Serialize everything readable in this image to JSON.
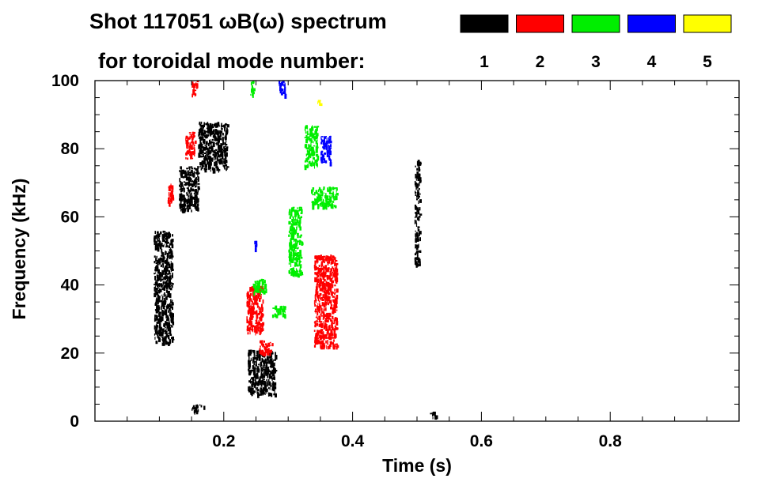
{
  "chart_data": {
    "type": "heatmap",
    "title_line1": "Shot 117051 ωB(ω) spectrum",
    "title_line2": "for toroidal mode number:",
    "xlabel": "Time (s)",
    "ylabel": "Frequency (kHz)",
    "xlim": [
      0,
      1.0
    ],
    "ylim": [
      0,
      100
    ],
    "xticks": [
      0.2,
      0.4,
      0.6,
      0.8
    ],
    "xtick_labels": [
      "0.2",
      "0.4",
      "0.6",
      "0.8"
    ],
    "yticks": [
      0,
      20,
      40,
      60,
      80,
      100
    ],
    "ytick_labels": [
      "0",
      "20",
      "40",
      "60",
      "80",
      "100"
    ],
    "legend_placement": "top, to the right of the title",
    "legend": [
      {
        "label": "1",
        "color": "#000000"
      },
      {
        "label": "2",
        "color": "#ff0000"
      },
      {
        "label": "3",
        "color": "#00ee00"
      },
      {
        "label": "4",
        "color": "#0000ff"
      },
      {
        "label": "5",
        "color": "#ffff00"
      }
    ],
    "series": [
      {
        "mode": 1,
        "color": "#000000",
        "regions": [
          {
            "t": [
              0.091,
              0.12
            ],
            "f": [
              23,
              56
            ]
          },
          {
            "t": [
              0.13,
              0.16
            ],
            "f": [
              62,
              75
            ]
          },
          {
            "t": [
              0.16,
              0.205
            ],
            "f": [
              74,
              88
            ]
          },
          {
            "t": [
              0.237,
              0.28
            ],
            "f": [
              8,
              21
            ]
          },
          {
            "t": [
              0.496,
              0.504
            ],
            "f": [
              46,
              77
            ]
          },
          {
            "t": [
              0.15,
              0.17
            ],
            "f": [
              3,
              5
            ]
          },
          {
            "t": [
              0.52,
              0.53
            ],
            "f": [
              1,
              3
            ]
          }
        ]
      },
      {
        "mode": 2,
        "color": "#ff0000",
        "regions": [
          {
            "t": [
              0.34,
              0.375
            ],
            "f": [
              22,
              49
            ]
          },
          {
            "t": [
              0.235,
              0.26
            ],
            "f": [
              26,
              40
            ]
          },
          {
            "t": [
              0.112,
              0.122
            ],
            "f": [
              64,
              70
            ]
          },
          {
            "t": [
              0.14,
              0.155
            ],
            "f": [
              77,
              85
            ]
          },
          {
            "t": [
              0.255,
              0.275
            ],
            "f": [
              20,
              24
            ]
          },
          {
            "t": [
              0.15,
              0.158
            ],
            "f": [
              96,
              100
            ]
          }
        ]
      },
      {
        "mode": 3,
        "color": "#00ee00",
        "regions": [
          {
            "t": [
              0.3,
              0.32
            ],
            "f": [
              43,
              63
            ]
          },
          {
            "t": [
              0.335,
              0.375
            ],
            "f": [
              63,
              69
            ]
          },
          {
            "t": [
              0.325,
              0.345
            ],
            "f": [
              75,
              87
            ]
          },
          {
            "t": [
              0.245,
              0.265
            ],
            "f": [
              38,
              42
            ]
          },
          {
            "t": [
              0.275,
              0.295
            ],
            "f": [
              31,
              34
            ]
          },
          {
            "t": [
              0.24,
              0.246
            ],
            "f": [
              96,
              100
            ]
          }
        ]
      },
      {
        "mode": 4,
        "color": "#0000ff",
        "regions": [
          {
            "t": [
              0.35,
              0.365
            ],
            "f": [
              76,
              84
            ]
          },
          {
            "t": [
              0.285,
              0.295
            ],
            "f": [
              96,
              100
            ]
          },
          {
            "t": [
              0.245,
              0.25
            ],
            "f": [
              50,
              53
            ]
          }
        ]
      },
      {
        "mode": 5,
        "color": "#ffff00",
        "regions": [
          {
            "t": [
              0.345,
              0.35
            ],
            "f": [
              93,
              95
            ]
          }
        ]
      }
    ]
  }
}
